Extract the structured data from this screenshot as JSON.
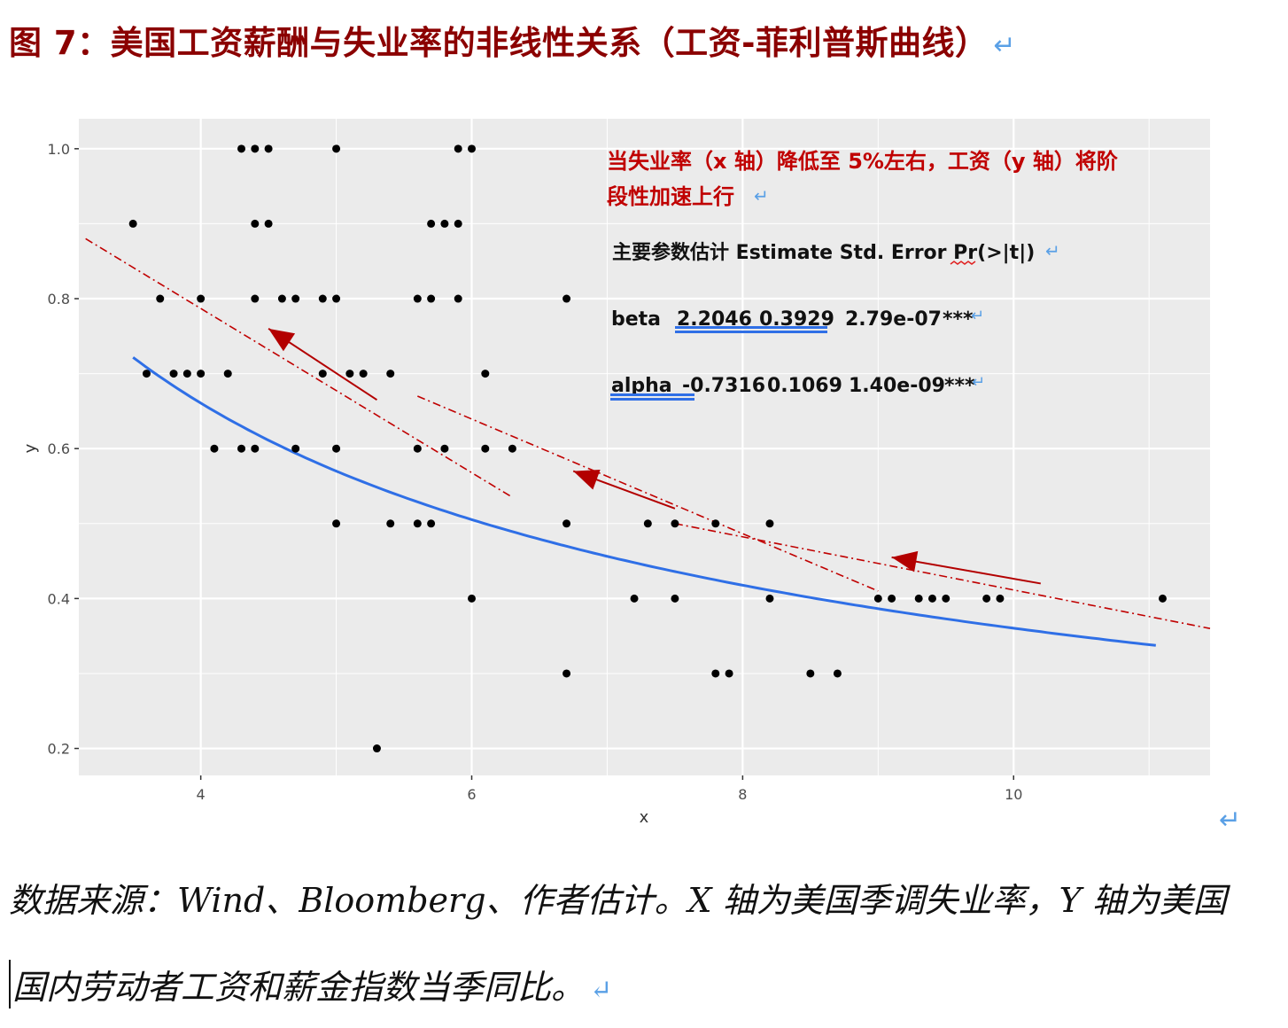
{
  "title": "图 7：美国工资薪酬与失业率的非线性关系（工资-菲利普斯曲线）",
  "return_mark": "↵",
  "source_line1": "数据来源：Wind、Bloomberg、作者估计。X 轴为美国季调失业率，Y 轴为美国",
  "source_line2": "国内劳动者工资和薪金指数当季同比。",
  "colors": {
    "title": "#8b0000",
    "panel": "#ebebeb",
    "grid": "#ffffff",
    "points": "#000000",
    "curve": "#2f6fe6",
    "dashed": "#c00000",
    "arrow": "#b30000",
    "annotation": "#c00000"
  },
  "chart_data": {
    "type": "scatter",
    "xlabel": "x",
    "ylabel": "y",
    "xlim": [
      3.1,
      11.45
    ],
    "ylim": [
      0.164,
      1.04
    ],
    "x_ticks": [
      4,
      6,
      8,
      10
    ],
    "y_ticks": [
      0.2,
      0.4,
      0.6,
      0.8,
      1.0
    ],
    "x_tick_labels": [
      "4",
      "6",
      "8",
      "10"
    ],
    "y_tick_labels": [
      "0.2",
      "0.4",
      "0.6",
      "0.8",
      "1.0"
    ],
    "grid": true,
    "points": [
      [
        3.5,
        0.9
      ],
      [
        3.7,
        0.8
      ],
      [
        3.6,
        0.7
      ],
      [
        3.8,
        0.7
      ],
      [
        3.9,
        0.7
      ],
      [
        4.0,
        0.7
      ],
      [
        4.0,
        0.8
      ],
      [
        4.1,
        0.6
      ],
      [
        4.2,
        0.7
      ],
      [
        4.3,
        1.0
      ],
      [
        4.4,
        1.0
      ],
      [
        4.5,
        1.0
      ],
      [
        4.4,
        0.9
      ],
      [
        4.5,
        0.9
      ],
      [
        4.4,
        0.8
      ],
      [
        4.6,
        0.8
      ],
      [
        4.7,
        0.8
      ],
      [
        4.3,
        0.6
      ],
      [
        4.4,
        0.6
      ],
      [
        4.7,
        0.6
      ],
      [
        4.9,
        0.8
      ],
      [
        5.0,
        0.8
      ],
      [
        4.9,
        0.7
      ],
      [
        5.0,
        1.0
      ],
      [
        5.0,
        0.6
      ],
      [
        5.0,
        0.5
      ],
      [
        5.1,
        0.7
      ],
      [
        5.2,
        0.7
      ],
      [
        5.3,
        0.2
      ],
      [
        5.4,
        0.7
      ],
      [
        5.4,
        0.5
      ],
      [
        5.6,
        0.8
      ],
      [
        5.7,
        0.8
      ],
      [
        5.6,
        0.6
      ],
      [
        5.6,
        0.5
      ],
      [
        5.7,
        0.5
      ],
      [
        5.7,
        0.9
      ],
      [
        5.8,
        0.9
      ],
      [
        5.9,
        0.9
      ],
      [
        5.9,
        0.8
      ],
      [
        5.9,
        1.0
      ],
      [
        6.0,
        1.0
      ],
      [
        5.8,
        0.6
      ],
      [
        6.1,
        0.7
      ],
      [
        6.1,
        0.6
      ],
      [
        6.3,
        0.6
      ],
      [
        6.0,
        0.4
      ],
      [
        6.7,
        0.8
      ],
      [
        6.7,
        0.5
      ],
      [
        6.7,
        0.3
      ],
      [
        7.2,
        0.4
      ],
      [
        7.3,
        0.5
      ],
      [
        7.5,
        0.5
      ],
      [
        7.5,
        0.4
      ],
      [
        7.8,
        0.5
      ],
      [
        7.8,
        0.3
      ],
      [
        7.9,
        0.3
      ],
      [
        8.2,
        0.5
      ],
      [
        8.2,
        0.4
      ],
      [
        8.5,
        0.3
      ],
      [
        8.7,
        0.3
      ],
      [
        9.0,
        0.4
      ],
      [
        9.1,
        0.4
      ],
      [
        9.3,
        0.4
      ],
      [
        9.4,
        0.4
      ],
      [
        9.5,
        0.4
      ],
      [
        9.8,
        0.4
      ],
      [
        9.9,
        0.4
      ],
      [
        11.1,
        0.4
      ]
    ],
    "fitted_curve": {
      "beta": 2.2046,
      "alpha": -0.7316,
      "x_range": [
        3.5,
        11.05
      ]
    },
    "dashed_lines": [
      {
        "from": [
          3.15,
          0.88
        ],
        "to": [
          6.3,
          0.535
        ]
      },
      {
        "from": [
          5.6,
          0.67
        ],
        "to": [
          9.0,
          0.41
        ]
      },
      {
        "from": [
          7.5,
          0.5
        ],
        "to": [
          11.45,
          0.36
        ]
      }
    ],
    "arrows": [
      {
        "from": [
          5.3,
          0.665
        ],
        "to": [
          4.5,
          0.76
        ]
      },
      {
        "from": [
          7.5,
          0.52
        ],
        "to": [
          6.75,
          0.57
        ]
      },
      {
        "from": [
          10.2,
          0.42
        ],
        "to": [
          9.1,
          0.455
        ]
      }
    ],
    "annotation": {
      "line1": "当失业率（x 轴）降低至 5%左右，工资（y 轴）将阶",
      "line2": "段性加速上行"
    },
    "stats": {
      "header": "主要参数估计 Estimate Std. Error Pr(>|t|)",
      "rows": [
        {
          "name": "beta",
          "estimate": "2.2046",
          "std_error": "0.3929",
          "p_value": "2.79e-07",
          "sig": "***"
        },
        {
          "name": "alpha",
          "estimate": "-0.7316",
          "std_error": "0.1069",
          "p_value": "1.40e-09",
          "sig": "***"
        }
      ]
    }
  }
}
